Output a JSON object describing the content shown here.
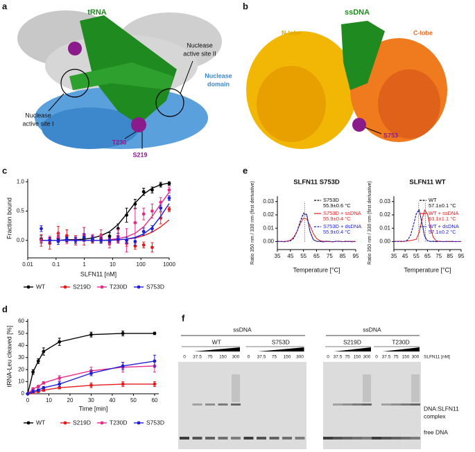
{
  "panel_labels": [
    "a",
    "b",
    "c",
    "d",
    "e",
    "f"
  ],
  "structure_a": {
    "trna": "tRNA",
    "site_1": [
      "Nuclease",
      "active site I"
    ],
    "site_2": [
      "Nuclease",
      "active site II"
    ],
    "domain": [
      "Nuclease",
      "domain"
    ],
    "residue_1": "T230",
    "residue_2": "S219"
  },
  "structure_b": {
    "ssdna": "ssDNA",
    "n_lobe": "N-lobe",
    "c_lobe": "C-lobe",
    "residue": "S753"
  },
  "chart_data": [
    {
      "type": "scatter",
      "ylabel": "Fraction bound",
      "xlabel": "SLFN11 [nM]",
      "xlog": true,
      "legend": "bottom",
      "x": [
        0.03,
        0.06,
        0.12,
        0.24,
        0.49,
        0.98,
        1.95,
        3.9,
        7.8,
        15.6,
        31.25,
        62.5,
        125,
        250,
        500,
        1000
      ],
      "xlim": [
        0.01,
        1000
      ],
      "xticks": [
        0.01,
        0.1,
        1,
        10,
        100,
        1000
      ],
      "ylim": [
        -0.3,
        1.05
      ],
      "yticks": [
        {
          "value": 0,
          "label": "0.0"
        },
        {
          "value": 0.5,
          "label": "0.5"
        },
        {
          "value": 1,
          "label": "1.0"
        }
      ],
      "series": [
        {
          "name": "WT",
          "color": "#000000",
          "values": [
            0.02,
            0.0,
            0.03,
            0.01,
            0.0,
            0.03,
            0.02,
            0.02,
            0.07,
            0.2,
            0.43,
            0.62,
            0.83,
            0.86,
            0.95,
            0.97
          ],
          "errors": [
            0.06,
            0.05,
            0.05,
            0.04,
            0.05,
            0.04,
            0.05,
            0.05,
            0.06,
            0.08,
            0.12,
            0.08,
            0.06,
            0.05,
            0.04,
            0.03
          ],
          "fit_values": [
            0,
            0,
            0,
            0.01,
            0.01,
            0.02,
            0.04,
            0.08,
            0.15,
            0.27,
            0.45,
            0.64,
            0.79,
            0.89,
            0.95,
            0.98
          ]
        },
        {
          "name": "S219D",
          "color": "#e41a1c",
          "values": [
            0.0,
            -0.05,
            0.12,
            0.08,
            0.0,
            0.07,
            0.0,
            0.03,
            -0.02,
            0.0,
            -0.05,
            -0.1,
            -0.08,
            -0.12,
            0.38,
            0.53
          ],
          "errors": [
            0.1,
            0.1,
            0.12,
            0.1,
            0.08,
            0.15,
            0.05,
            0.08,
            0.06,
            0.05,
            0.05,
            0.05,
            0.05,
            0.08,
            0.1,
            0.04
          ],
          "fit_values": [
            0,
            0,
            0,
            0,
            0,
            0,
            0,
            0,
            0,
            0.01,
            0.02,
            0.04,
            0.08,
            0.14,
            0.23,
            0.35
          ]
        },
        {
          "name": "T230D",
          "color": "#e7298a",
          "values": [
            0.0,
            0.02,
            0.05,
            0.0,
            0.02,
            0.1,
            0.05,
            0.08,
            -0.05,
            0.07,
            0.0,
            0.3,
            0.45,
            0.5,
            0.65,
            0.86
          ],
          "errors": [
            0.05,
            0.05,
            0.08,
            0.06,
            0.05,
            0.12,
            0.05,
            0.1,
            0.08,
            0.12,
            0.2,
            0.25,
            0.1,
            0.12,
            0.08,
            0.05
          ],
          "fit_values": [
            0,
            0,
            0,
            0,
            0,
            0,
            0,
            0,
            0.01,
            0.03,
            0.06,
            0.12,
            0.23,
            0.41,
            0.62,
            0.82
          ]
        },
        {
          "name": "S753D",
          "color": "#1f1fd6",
          "values": [
            0.2,
            0.0,
            -0.02,
            0.02,
            0.0,
            0.05,
            0.03,
            0.0,
            0.0,
            0.02,
            0.0,
            -0.02,
            0.15,
            0.2,
            0.55,
            0.72
          ],
          "errors": [
            0.05,
            0.05,
            0.05,
            0.04,
            0.05,
            0.06,
            0.05,
            0.05,
            0.04,
            0.05,
            0.05,
            0.06,
            0.06,
            0.05,
            0.05,
            0.04
          ],
          "fit_values": [
            0,
            0,
            0,
            0,
            0,
            0,
            0,
            0,
            0,
            0.01,
            0.02,
            0.05,
            0.11,
            0.22,
            0.41,
            0.63
          ]
        }
      ]
    },
    {
      "type": "line",
      "markers": true,
      "ylabel": "tRNA-Leu cleaved [%]",
      "xlabel": "Time [min]",
      "legend": "bottom",
      "x": [
        0,
        2.5,
        5,
        7.5,
        15,
        30,
        45,
        60
      ],
      "xlim": [
        0,
        62
      ],
      "xticks": [
        0,
        10,
        20,
        30,
        40,
        50,
        60
      ],
      "ylim": [
        0,
        62
      ],
      "yticks": [
        0,
        10,
        20,
        30,
        40,
        50,
        60
      ],
      "series": [
        {
          "name": "WT",
          "color": "#000000",
          "values": [
            0,
            18,
            27,
            35,
            43,
            49,
            50,
            50
          ],
          "errors": [
            0,
            2,
            2,
            3,
            3,
            2,
            2,
            1
          ]
        },
        {
          "name": "S219D",
          "color": "#e41a1c",
          "values": [
            0,
            1,
            2,
            3,
            5,
            7,
            8,
            8
          ],
          "errors": [
            0,
            1,
            1,
            1,
            1,
            2,
            2,
            2
          ]
        },
        {
          "name": "T230D",
          "color": "#e7298a",
          "values": [
            0,
            4,
            6,
            9,
            13,
            19,
            22,
            23
          ],
          "errors": [
            0,
            1,
            1,
            1,
            2,
            3,
            4,
            5
          ]
        },
        {
          "name": "S753D",
          "color": "#1f1fd6",
          "values": [
            0,
            2,
            3,
            5,
            8,
            17,
            23,
            27
          ],
          "errors": [
            0,
            1,
            1,
            1,
            2,
            2,
            3,
            5
          ]
        }
      ]
    },
    {
      "type": "line",
      "title": "SLFN11 S753D",
      "ylabel": "Ratio 350 nm / 330 nm (first derivative)",
      "xlabel": "Temperature [°C]",
      "legend": "top-right",
      "x": [
        35,
        37.5,
        40,
        42.5,
        45,
        47.5,
        50,
        52.5,
        55,
        57.5,
        60,
        62.5,
        65,
        67.5,
        70,
        72.5,
        75,
        77.5,
        80,
        82.5,
        85,
        87.5,
        90,
        92.5,
        95
      ],
      "xlim": [
        35,
        95
      ],
      "xticks": [
        35,
        45,
        55,
        65,
        75,
        85,
        95
      ],
      "ylim": [
        -0.006,
        0.034
      ],
      "yticks": [
        {
          "value": 0,
          "label": "0.00"
        },
        0.01,
        0.02,
        0.03
      ],
      "tm_lines": [
        55.9
      ],
      "series": [
        {
          "name": "S753D",
          "tm": "55.9±0.6 °C",
          "color": "#000000",
          "dashed": true,
          "values": [
            0.0002,
            0.0001,
            -0.0002,
            0.0001,
            0.0005,
            0.0024,
            0.0074,
            0.0153,
            0.0214,
            0.0203,
            0.0077,
            0.0015,
            0.0001,
            0.0002,
            -0.0003,
            0.0002,
            0.0001,
            -0.0002,
            0.0002,
            0.0003,
            -0.0001,
            0.0002,
            0.0001,
            -0.0002,
            0.0
          ]
        },
        {
          "name": "S753D + ssDNA",
          "tm": "55.9±0.4 °C",
          "color": "#e41a1c",
          "values": [
            0.0001,
            0.0,
            0.0001,
            0.0003,
            0.001,
            0.0032,
            0.0076,
            0.0135,
            0.0176,
            0.0169,
            0.0119,
            0.0061,
            0.0023,
            0.0007,
            0.0002,
            0.0,
            0.0001,
            -0.0002,
            0.0001,
            0.0002,
            0.0,
            -0.0001,
            0.0002,
            0.0001,
            0.0
          ]
        },
        {
          "name": "S753D + dsDNA",
          "tm": "55.9±0.4 °C",
          "color": "#1f1fd6",
          "dashed": true,
          "values": [
            0.0001,
            0.0002,
            -0.0001,
            0.0002,
            0.0006,
            0.0025,
            0.0072,
            0.0148,
            0.0206,
            0.0196,
            0.0074,
            0.0014,
            0.0002,
            0.0001,
            -0.0002,
            0.0003,
            0.0,
            -0.0001,
            0.0002,
            0.0001,
            0.0,
            0.0002,
            -0.0001,
            0.0001,
            0.0001
          ]
        }
      ]
    },
    {
      "type": "line",
      "title": "SLFN11 WT",
      "ylabel": "Ratio 350 nm / 330 nm (first derivative)",
      "xlabel": "Temperature [°C]",
      "legend": "top-right",
      "x": [
        35,
        37.5,
        40,
        42.5,
        45,
        47.5,
        50,
        52.5,
        55,
        57.5,
        60,
        62.5,
        65,
        67.5,
        70,
        72.5,
        75,
        77.5,
        80,
        82.5,
        85,
        87.5,
        90,
        92.5,
        95
      ],
      "xlim": [
        35,
        95
      ],
      "xticks": [
        35,
        45,
        55,
        65,
        75,
        85,
        95
      ],
      "ylim": [
        -0.006,
        0.034
      ],
      "yticks": [
        {
          "value": 0,
          "label": "0.00"
        },
        0.01,
        0.02,
        0.03
      ],
      "tm_lines": [
        57.1,
        63.1
      ],
      "series": [
        {
          "name": "WT",
          "tm": "57.1±0.1 °C",
          "color": "#000000",
          "dashed": true,
          "values": [
            0.0001,
            0.0,
            0.0001,
            0.0,
            0.0002,
            0.0013,
            0.005,
            0.0124,
            0.0209,
            0.0239,
            0.0142,
            0.0039,
            0.0005,
            0.0001,
            0.0002,
            0.0,
            0.0001,
            -0.0001,
            0.0001,
            0.0,
            0.0002,
            0.0001,
            -0.0001,
            0.0,
            0.0001
          ]
        },
        {
          "name": "WT + ssDNA",
          "tm": "63.1±1.1 °C",
          "color": "#e41a1c",
          "values": [
            0.0002,
            0.0001,
            0.0002,
            0.0001,
            0.0002,
            0.0004,
            0.0008,
            0.0012,
            0.0017,
            0.0067,
            0.0162,
            0.0236,
            0.0207,
            0.0109,
            0.0034,
            0.0007,
            0.0002,
            0.0001,
            0.0,
            0.0001,
            0.0,
            -0.0001,
            0.0001,
            0.0,
            0.0
          ]
        },
        {
          "name": "WT + dsDNA",
          "tm": "57.1±0.2 °C",
          "color": "#1f1fd6",
          "dashed": true,
          "values": [
            0.0,
            0.0001,
            0.0,
            0.0001,
            0.0003,
            0.0014,
            0.0052,
            0.0126,
            0.0206,
            0.0236,
            0.0139,
            0.0037,
            0.0006,
            0.0001,
            0.0,
            0.0001,
            0.0,
            0.0001,
            -0.0001,
            0.0001,
            0.0,
            0.0001,
            0.0,
            0.0001,
            0.0
          ]
        }
      ]
    }
  ],
  "gel": {
    "header": "ssDNA",
    "groups": [
      "WT",
      "S753D",
      "S219D",
      "T230D"
    ],
    "concentrations": [
      "0",
      "37.5",
      "75",
      "150",
      "300"
    ],
    "unit": "SLFN11 [nM]",
    "band_labels": [
      "DNA:SLFN11",
      "complex",
      "free DNA"
    ]
  }
}
